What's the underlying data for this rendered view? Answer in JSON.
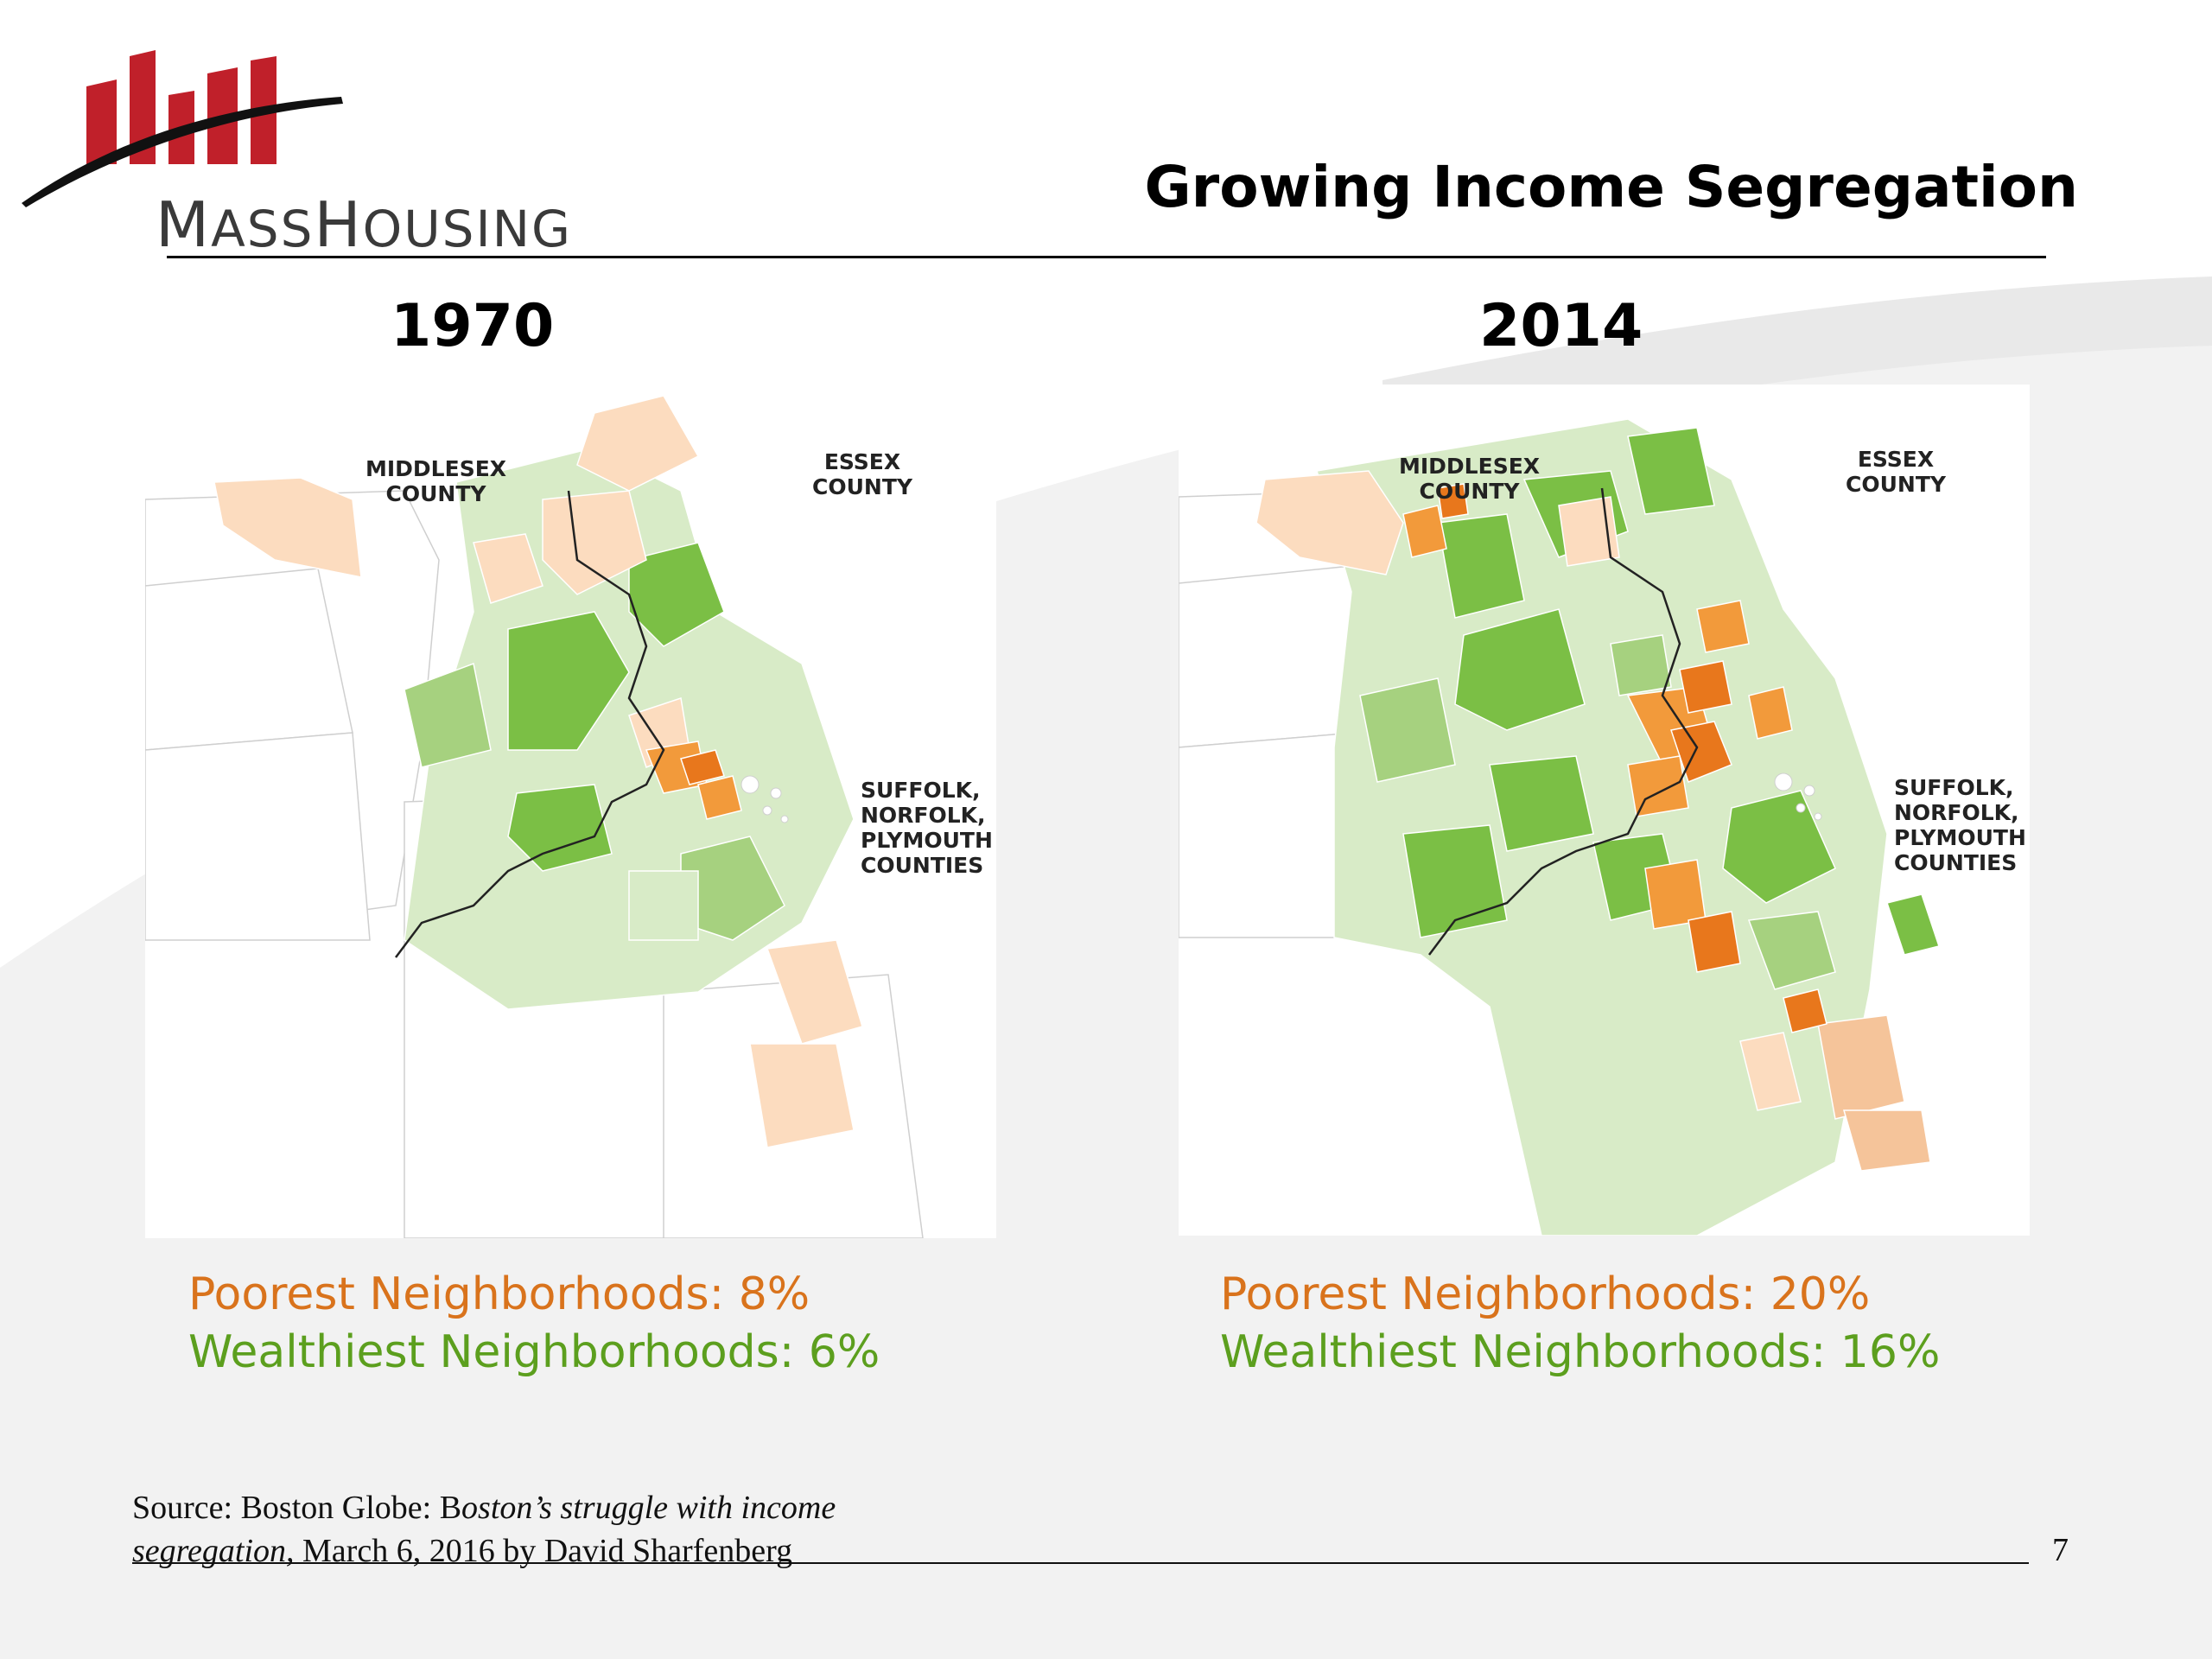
{
  "header": {
    "logo_text_cap1": "M",
    "logo_text_rest1": "ASS",
    "logo_text_cap2": "H",
    "logo_text_rest2": "OUSING",
    "title": "Growing Income Segregation"
  },
  "maps": [
    {
      "year": "1970",
      "labels": {
        "middlesex": [
          "MIDDLESEX",
          "COUNTY"
        ],
        "essex": [
          "ESSEX",
          "COUNTY"
        ],
        "suffolk": [
          "SUFFOLK,",
          "NORFOLK,",
          "PLYMOUTH",
          "COUNTIES"
        ]
      },
      "poorest": "Poorest Neighborhoods:  8%",
      "wealthiest": "Wealthiest Neighborhoods:  6%"
    },
    {
      "year": "2014",
      "labels": {
        "middlesex": [
          "MIDDLESEX",
          "COUNTY"
        ],
        "essex": [
          "ESSEX",
          "COUNTY"
        ],
        "suffolk": [
          "SUFFOLK,",
          "NORFOLK,",
          "PLYMOUTH",
          "COUNTIES"
        ]
      },
      "poorest": "Poorest Neighborhoods:  20%",
      "wealthiest": "Wealthiest Neighborhoods:  16%"
    }
  ],
  "colors": {
    "poor": "#d9731c",
    "wealthy": "#5c9f1e",
    "logo_red": "#c0202a"
  },
  "footer": {
    "source_prefix": "Source:  Boston Globe:  B",
    "source_title": "oston’s struggle with income segregation,",
    "source_suffix": " March 6, 2016 by David Sharfenberg",
    "page_number": "7"
  }
}
